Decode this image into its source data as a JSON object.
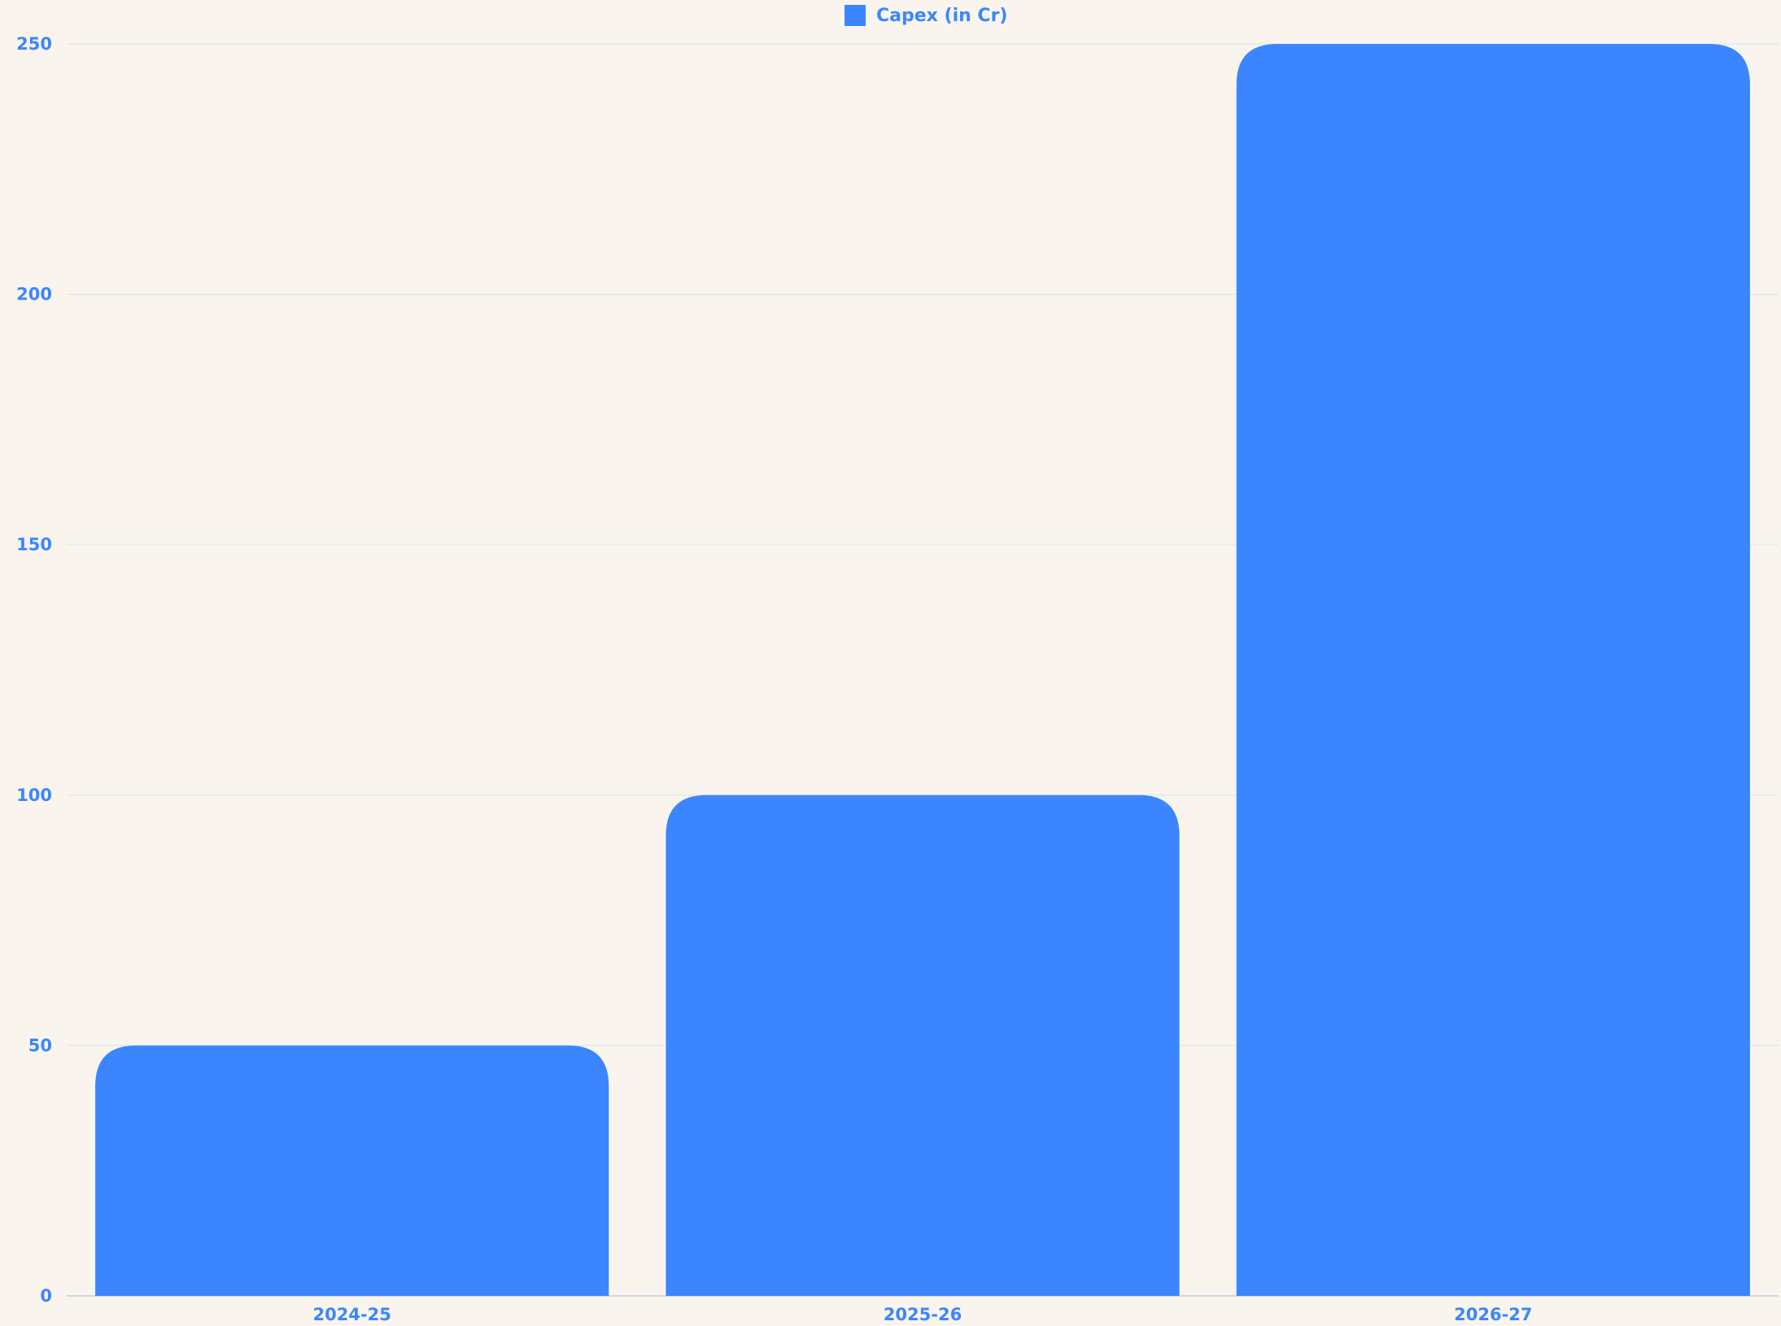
{
  "chart_data": {
    "type": "bar",
    "categories": [
      "2024-25",
      "2025-26",
      "2026-27"
    ],
    "series": [
      {
        "name": "Capex (in Cr)",
        "values": [
          50,
          100,
          250
        ]
      }
    ],
    "ylim": [
      0,
      250
    ],
    "yticks": [
      "0",
      "50",
      "100",
      "150",
      "200",
      "250"
    ],
    "grid": true,
    "legend_position": "top",
    "colors": {
      "bar": "#3b86ff",
      "text": "#3b86ff",
      "grid": "#dde6ee",
      "axis": "#b9cfe6",
      "background": "#f9f5ee"
    }
  }
}
